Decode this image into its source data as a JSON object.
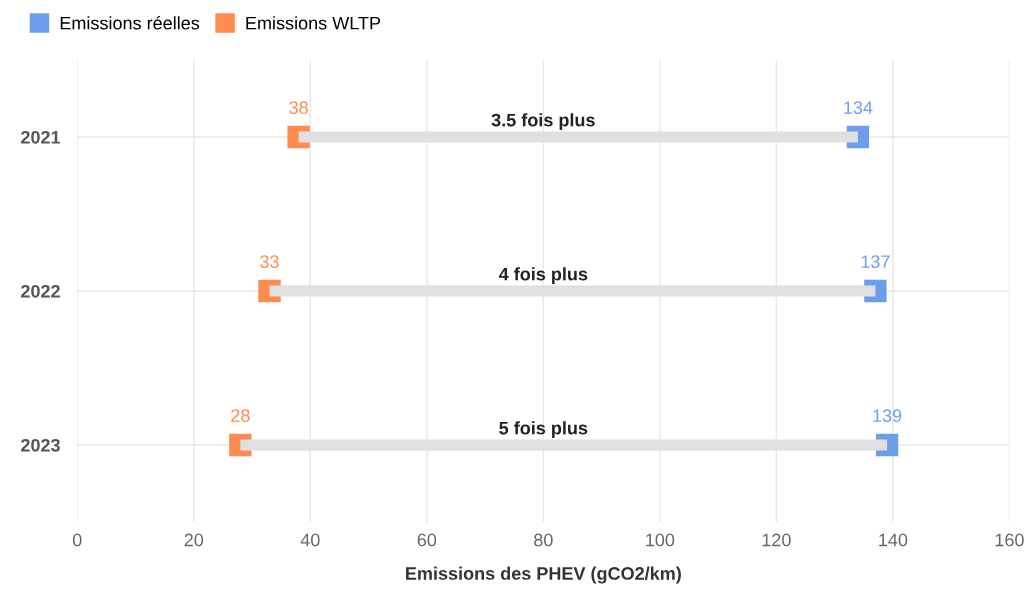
{
  "chart_data": {
    "type": "scatter",
    "orientation": "horizontal",
    "categories": [
      "2021",
      "2022",
      "2023"
    ],
    "series": [
      {
        "type": "bar",
        "color": "#e0e0e0",
        "base": [
          38,
          33,
          28
        ],
        "values": [
          96,
          104,
          111
        ]
      },
      {
        "name": "Emissions réelles",
        "color": "#6d9eeb",
        "values": [
          134,
          137,
          139
        ],
        "value_labels": [
          "134",
          "137",
          "139"
        ]
      },
      {
        "name": "Emissions WLTP",
        "color": "#ff8c4f",
        "values": [
          38,
          33,
          28
        ],
        "value_labels": [
          "38",
          "33",
          "28"
        ]
      }
    ],
    "annotations": [
      "3.5 fois plus",
      "4 fois plus",
      "5 fois plus"
    ],
    "xlabel": "Emissions des PHEV (gCO2/km)",
    "xlim": [
      0,
      160
    ],
    "xticks": [
      0,
      20,
      40,
      60,
      80,
      100,
      120,
      140,
      160
    ],
    "grid": true,
    "legend": "top left",
    "marker": "square"
  }
}
